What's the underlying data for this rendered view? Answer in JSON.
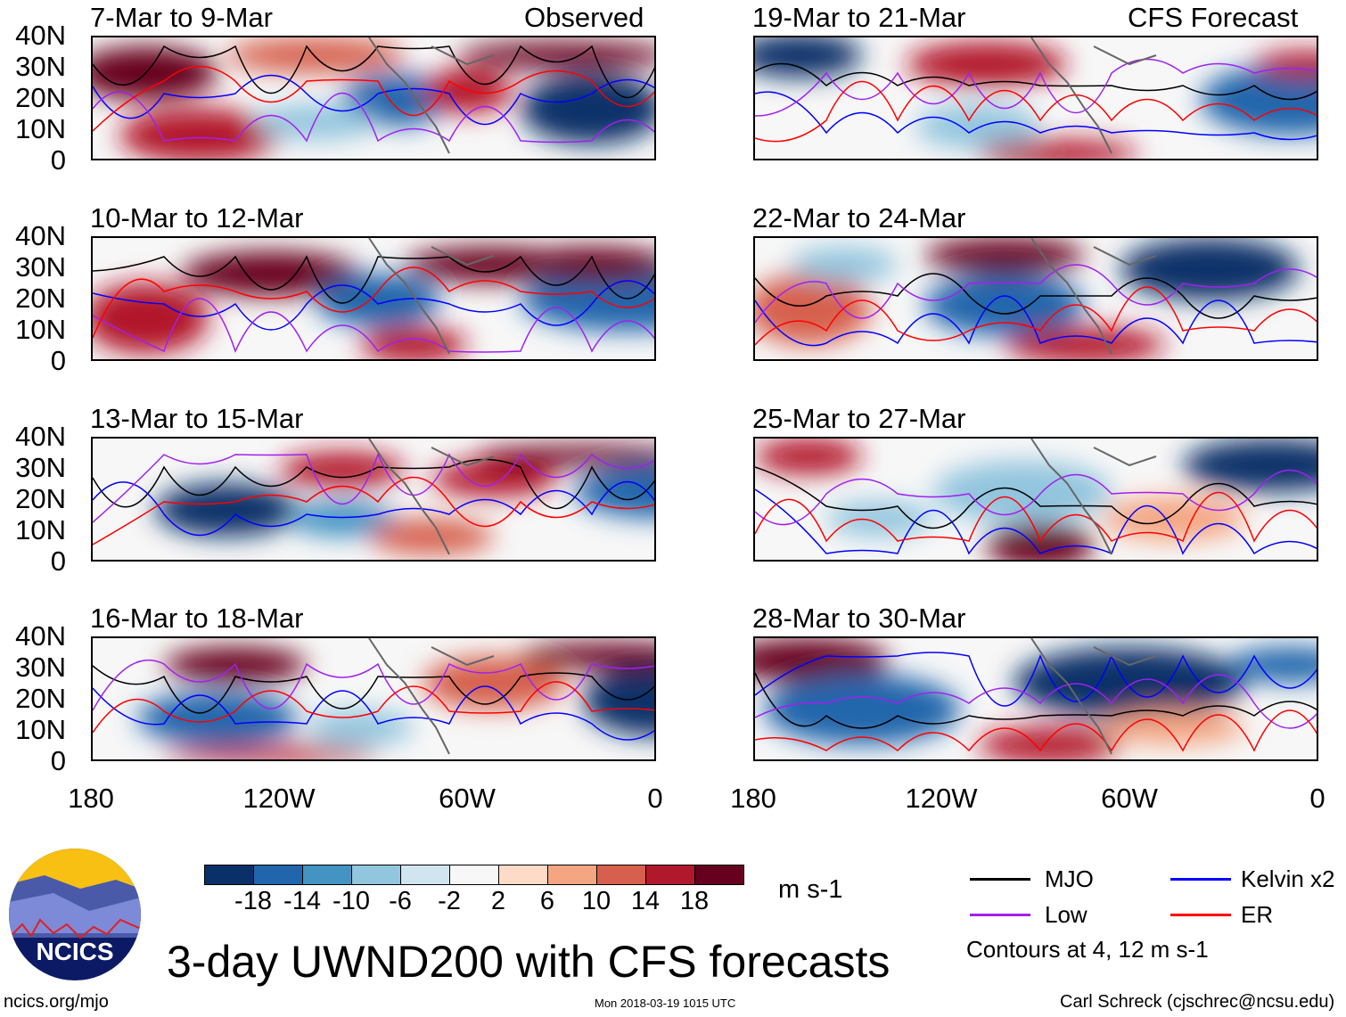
{
  "header": {
    "left_label": "Observed",
    "right_label": "CFS Forecast"
  },
  "panels_left": [
    {
      "title": "7-Mar to 9-Mar"
    },
    {
      "title": "10-Mar to 12-Mar"
    },
    {
      "title": "13-Mar to 15-Mar"
    },
    {
      "title": "16-Mar to 18-Mar"
    }
  ],
  "panels_right": [
    {
      "title": "19-Mar to 21-Mar"
    },
    {
      "title": "22-Mar to 24-Mar"
    },
    {
      "title": "25-Mar to 27-Mar"
    },
    {
      "title": "28-Mar to 30-Mar"
    }
  ],
  "y_ticks": [
    "40N",
    "30N",
    "20N",
    "10N",
    "0"
  ],
  "x_ticks": [
    "180",
    "120W",
    "60W",
    "0"
  ],
  "colorbar": {
    "labels": [
      "-18",
      "-14",
      "-10",
      "-6",
      "-2",
      "2",
      "6",
      "10",
      "14",
      "18"
    ],
    "colors": [
      "#0a3069",
      "#2166ac",
      "#4393c3",
      "#92c5de",
      "#d1e5f0",
      "#f7f7f7",
      "#fddbc7",
      "#f4a582",
      "#d6604d",
      "#b2182b",
      "#67001f"
    ],
    "units": "m s-1"
  },
  "legend": {
    "items": [
      {
        "label": "MJO",
        "color": "#000000"
      },
      {
        "label": "Kelvin x2",
        "color": "#0000ff"
      },
      {
        "label": "Low",
        "color": "#a020f0"
      },
      {
        "label": "ER",
        "color": "#ff0000"
      }
    ],
    "note": "Contours at 4, 12 m s-1"
  },
  "logo": {
    "text": "NCICS"
  },
  "title": "3-day UWND200 with CFS forecasts",
  "footer": {
    "left": "ncics.org/mjo",
    "center": "Mon 2018-03-19 1015 UTC",
    "right": "Carl Schreck (cjschrec@ncsu.edu)"
  }
}
